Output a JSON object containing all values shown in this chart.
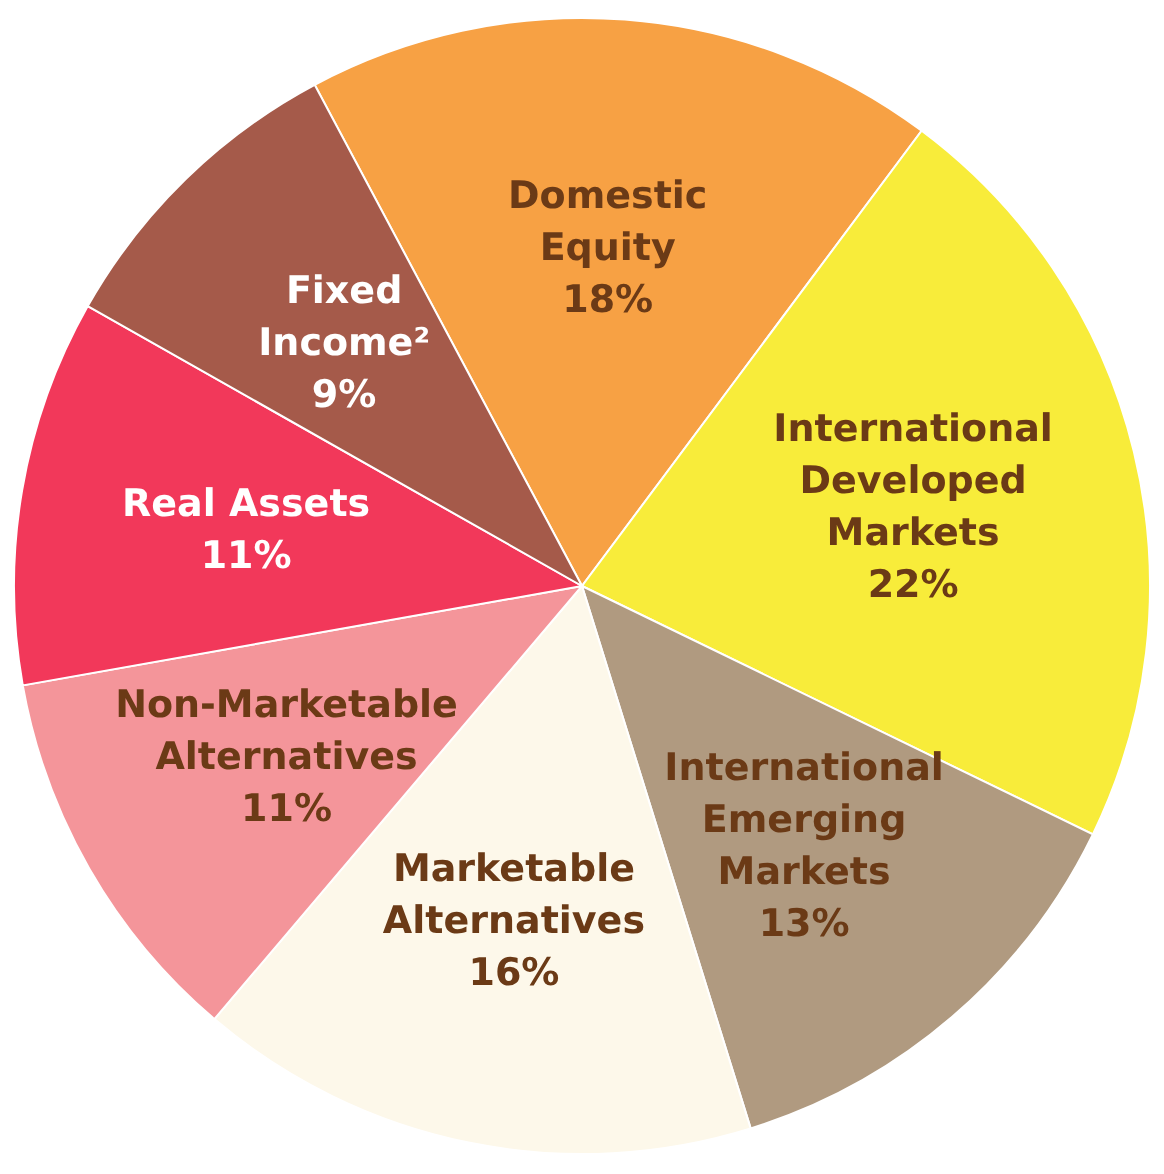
{
  "chart_data": {
    "type": "pie",
    "categories": [
      "Domestic Equity",
      "International Developed Markets",
      "International Emerging Markets",
      "Marketable Alternatives",
      "Non-Marketable Alternatives",
      "Real Assets",
      "Fixed Income²"
    ],
    "values": [
      18,
      22,
      13,
      16,
      11,
      11,
      9
    ],
    "colors": [
      "#f7a144",
      "#f8ec3a",
      "#b09a80",
      "#fdf8ea",
      "#f4959a",
      "#f2385a",
      "#a55a4a"
    ],
    "value_labels": [
      "18%",
      "22%",
      "13%",
      "16%",
      "11%",
      "11%",
      "9%"
    ]
  }
}
